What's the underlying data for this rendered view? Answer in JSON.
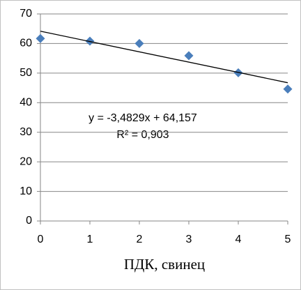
{
  "chart_data": {
    "type": "scatter",
    "x_label": "ПДК, свинец",
    "x": [
      0,
      1,
      2,
      3,
      4,
      5
    ],
    "series": [
      {
        "color": "#4a7ebb",
        "values": [
          61.7,
          60.8,
          60.0,
          55.9,
          50.1,
          44.6
        ]
      }
    ],
    "trendline": {
      "slope": -3.4829,
      "intercept": 64.157,
      "color": "#000000",
      "equation": "y = -3,4829x + 64,157",
      "r2": "R² = 0,903"
    },
    "xlim": [
      0,
      5
    ],
    "xticks": [
      0,
      1,
      2,
      3,
      4,
      5
    ],
    "ylim": [
      0,
      70
    ],
    "yticks": [
      0,
      10,
      20,
      30,
      40,
      50,
      60,
      70
    ],
    "grid": true
  }
}
